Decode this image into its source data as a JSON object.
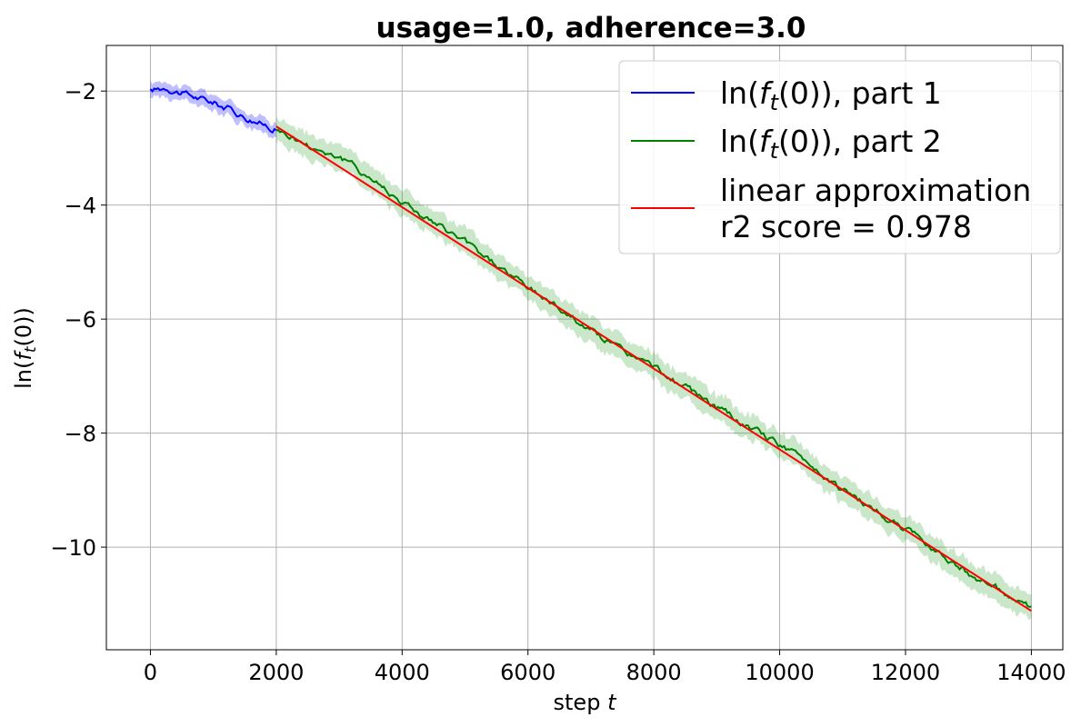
{
  "chart_data": {
    "type": "line",
    "title": "usage=1.0, adherence=3.0",
    "xlabel": "step t",
    "ylabel": "ln(f_t(0))",
    "xlim": [
      -700,
      14500
    ],
    "ylim": [
      -11.8,
      -1.2
    ],
    "x_ticks": [
      0,
      2000,
      4000,
      6000,
      8000,
      10000,
      12000,
      14000
    ],
    "x_tick_labels": [
      "0",
      "2000",
      "4000",
      "6000",
      "8000",
      "10000",
      "12000",
      "14000"
    ],
    "y_ticks": [
      -2,
      -4,
      -6,
      -8,
      -10
    ],
    "y_tick_labels": [
      "−2",
      "−4",
      "−6",
      "−8",
      "−10"
    ],
    "grid": true,
    "legend_position": "top-right",
    "series": [
      {
        "name": "ln(f_t(0)), part 1",
        "color": "#0000ff",
        "band_color": "#0000ff",
        "x": [
          0,
          250,
          500,
          750,
          1000,
          1250,
          1500,
          1750,
          2000
        ],
        "y": [
          -2.0,
          -1.93,
          -2.03,
          -2.12,
          -2.2,
          -2.31,
          -2.45,
          -2.56,
          -2.66
        ],
        "band_halfwidth": 0.13
      },
      {
        "name": "ln(f_t(0)), part 2",
        "color": "#008000",
        "band_color": "#2ca02c",
        "x": [
          2000,
          2500,
          3000,
          3500,
          4000,
          4500,
          5000,
          5500,
          6000,
          6500,
          7000,
          7500,
          8000,
          8500,
          9000,
          9500,
          10000,
          10500,
          11000,
          11500,
          12000,
          12500,
          13000,
          13500,
          14000
        ],
        "y": [
          -2.66,
          -2.95,
          -3.15,
          -3.52,
          -3.93,
          -4.32,
          -4.65,
          -5.05,
          -5.45,
          -5.8,
          -6.2,
          -6.55,
          -6.85,
          -7.2,
          -7.55,
          -7.9,
          -8.2,
          -8.55,
          -9.0,
          -9.35,
          -9.7,
          -10.05,
          -10.45,
          -10.75,
          -11.1
        ],
        "band_halfwidth": 0.22
      },
      {
        "name": "linear approximation\nr2 score = 0.978",
        "color": "#ff0000",
        "x": [
          2000,
          14000
        ],
        "y": [
          -2.62,
          -11.12
        ]
      }
    ]
  }
}
